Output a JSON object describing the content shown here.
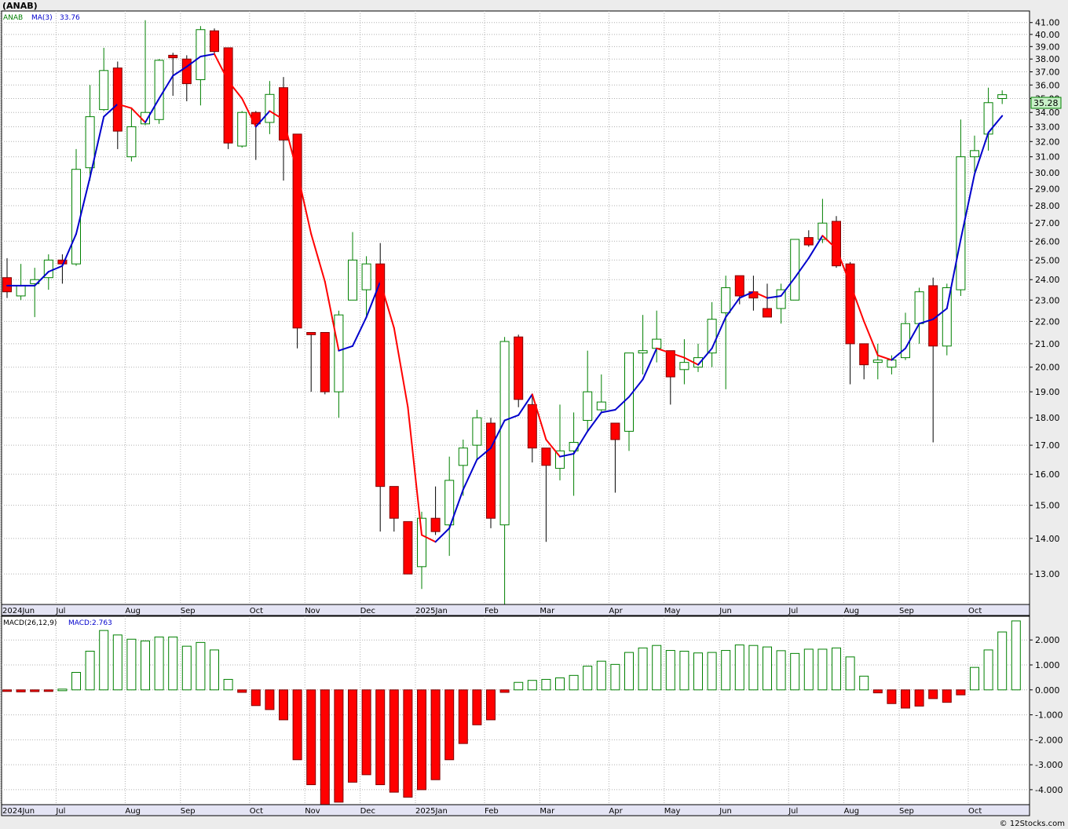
{
  "symbol_title": "(ANAB)",
  "legend": {
    "ticker": "ANAB",
    "ma_label": "MA(3)",
    "ma_value": "33.76"
  },
  "macd_legend": {
    "label": "MACD(26,12,9)",
    "value_label": "MACD:2.763"
  },
  "last_price_label": "35.28",
  "watermark": "© 12Stocks.com",
  "colors": {
    "up": "#008000",
    "down": "#ff0000",
    "ma_up": "#0000cc",
    "ma_down": "#ff0000",
    "grid": "#b0b0b0",
    "last_bg": "#c8f0c8"
  },
  "month_labels": [
    {
      "week": 0,
      "label": "2024Jun"
    },
    {
      "week": 4,
      "label": "Jul"
    },
    {
      "week": 9,
      "label": "Aug"
    },
    {
      "week": 13,
      "label": "Sep"
    },
    {
      "week": 18,
      "label": "Oct"
    },
    {
      "week": 22,
      "label": "Nov"
    },
    {
      "week": 26,
      "label": "Dec"
    },
    {
      "week": 30,
      "label": "2025Jan"
    },
    {
      "week": 35,
      "label": "Feb"
    },
    {
      "week": 39,
      "label": "Mar"
    },
    {
      "week": 44,
      "label": "Apr"
    },
    {
      "week": 48,
      "label": "May"
    },
    {
      "week": 52,
      "label": "Jun"
    },
    {
      "week": 57,
      "label": "Jul"
    },
    {
      "week": 61,
      "label": "Aug"
    },
    {
      "week": 65,
      "label": "Sep"
    },
    {
      "week": 70,
      "label": "Oct"
    }
  ],
  "chart_data": [
    {
      "type": "candlestick",
      "title": "(ANAB)",
      "ylabel": "",
      "yscale": "log",
      "ylim": [
        12.2,
        42.0
      ],
      "price_ticks": [
        "13.00",
        "14.00",
        "15.00",
        "16.00",
        "17.00",
        "18.00",
        "19.00",
        "20.00",
        "21.00",
        "22.00",
        "23.00",
        "24.00",
        "25.00",
        "26.00",
        "27.00",
        "28.00",
        "29.00",
        "30.00",
        "31.00",
        "32.00",
        "33.00",
        "34.00",
        "35.00",
        "36.00",
        "37.00",
        "38.00",
        "39.00",
        "40.00",
        "41.00"
      ],
      "grid": true,
      "candles": [
        {
          "o": 24.1,
          "h": 25.1,
          "l": 23.1,
          "c": 23.4
        },
        {
          "o": 23.2,
          "h": 24.8,
          "l": 23.0,
          "c": 23.7
        },
        {
          "o": 23.8,
          "h": 24.6,
          "l": 22.2,
          "c": 24.0
        },
        {
          "o": 24.1,
          "h": 25.3,
          "l": 23.5,
          "c": 25.0
        },
        {
          "o": 25.0,
          "h": 25.3,
          "l": 23.8,
          "c": 24.8
        },
        {
          "o": 24.8,
          "h": 31.5,
          "l": 24.7,
          "c": 30.2
        },
        {
          "o": 30.3,
          "h": 36.0,
          "l": 29.5,
          "c": 33.7
        },
        {
          "o": 34.2,
          "h": 38.9,
          "l": 34.1,
          "c": 37.1
        },
        {
          "o": 37.3,
          "h": 37.8,
          "l": 31.5,
          "c": 32.7
        },
        {
          "o": 31.0,
          "h": 34.3,
          "l": 30.7,
          "c": 33.0
        },
        {
          "o": 33.2,
          "h": 41.2,
          "l": 33.1,
          "c": 34.0
        },
        {
          "o": 33.5,
          "h": 38.0,
          "l": 33.2,
          "c": 37.9
        },
        {
          "o": 38.3,
          "h": 38.5,
          "l": 35.2,
          "c": 38.1
        },
        {
          "o": 38.0,
          "h": 38.3,
          "l": 34.8,
          "c": 36.1
        },
        {
          "o": 36.4,
          "h": 40.7,
          "l": 34.5,
          "c": 40.4
        },
        {
          "o": 40.3,
          "h": 40.5,
          "l": 38.4,
          "c": 38.6
        },
        {
          "o": 38.9,
          "h": 38.9,
          "l": 31.5,
          "c": 31.9
        },
        {
          "o": 31.7,
          "h": 34.1,
          "l": 31.6,
          "c": 34.0
        },
        {
          "o": 34.0,
          "h": 34.1,
          "l": 30.8,
          "c": 33.2
        },
        {
          "o": 33.3,
          "h": 36.3,
          "l": 32.5,
          "c": 35.3
        },
        {
          "o": 35.8,
          "h": 36.6,
          "l": 29.5,
          "c": 32.1
        },
        {
          "o": 32.5,
          "h": 32.5,
          "l": 20.8,
          "c": 21.7
        },
        {
          "o": 21.5,
          "h": 21.5,
          "l": 19.0,
          "c": 21.4
        },
        {
          "o": 21.5,
          "h": 21.5,
          "l": 18.9,
          "c": 19.0
        },
        {
          "o": 19.0,
          "h": 22.5,
          "l": 18.0,
          "c": 22.3
        },
        {
          "o": 23.0,
          "h": 26.5,
          "l": 23.0,
          "c": 25.0
        },
        {
          "o": 23.5,
          "h": 25.2,
          "l": 22.2,
          "c": 24.8
        },
        {
          "o": 24.8,
          "h": 25.9,
          "l": 14.2,
          "c": 15.6
        },
        {
          "o": 15.6,
          "h": 15.6,
          "l": 14.2,
          "c": 14.6
        },
        {
          "o": 14.5,
          "h": 14.5,
          "l": 13.0,
          "c": 13.0
        },
        {
          "o": 13.2,
          "h": 14.8,
          "l": 12.6,
          "c": 14.6
        },
        {
          "o": 14.6,
          "h": 15.6,
          "l": 14.1,
          "c": 14.2
        },
        {
          "o": 14.4,
          "h": 16.6,
          "l": 13.5,
          "c": 15.8
        },
        {
          "o": 16.3,
          "h": 17.2,
          "l": 15.3,
          "c": 16.9
        },
        {
          "o": 17.0,
          "h": 18.3,
          "l": 16.5,
          "c": 18.0
        },
        {
          "o": 17.8,
          "h": 18.0,
          "l": 14.3,
          "c": 14.6
        },
        {
          "o": 14.4,
          "h": 21.3,
          "l": 12.2,
          "c": 21.1
        },
        {
          "o": 21.3,
          "h": 21.4,
          "l": 18.4,
          "c": 18.7
        },
        {
          "o": 18.5,
          "h": 18.9,
          "l": 16.4,
          "c": 16.9
        },
        {
          "o": 16.9,
          "h": 16.9,
          "l": 13.9,
          "c": 16.3
        },
        {
          "o": 16.2,
          "h": 18.5,
          "l": 15.8,
          "c": 16.8
        },
        {
          "o": 16.8,
          "h": 18.2,
          "l": 15.3,
          "c": 17.1
        },
        {
          "o": 17.9,
          "h": 20.7,
          "l": 17.5,
          "c": 19.0
        },
        {
          "o": 18.3,
          "h": 19.7,
          "l": 18.2,
          "c": 18.6
        },
        {
          "o": 17.8,
          "h": 17.8,
          "l": 15.4,
          "c": 17.2
        },
        {
          "o": 17.5,
          "h": 20.6,
          "l": 16.8,
          "c": 20.6
        },
        {
          "o": 20.6,
          "h": 22.3,
          "l": 19.7,
          "c": 20.7
        },
        {
          "o": 20.8,
          "h": 22.5,
          "l": 20.2,
          "c": 21.2
        },
        {
          "o": 20.7,
          "h": 20.7,
          "l": 18.5,
          "c": 19.6
        },
        {
          "o": 19.9,
          "h": 21.2,
          "l": 19.3,
          "c": 20.2
        },
        {
          "o": 20.0,
          "h": 21.0,
          "l": 19.8,
          "c": 20.4
        },
        {
          "o": 20.6,
          "h": 22.9,
          "l": 20.0,
          "c": 22.1
        },
        {
          "o": 22.4,
          "h": 24.2,
          "l": 19.1,
          "c": 23.6
        },
        {
          "o": 24.2,
          "h": 24.2,
          "l": 22.8,
          "c": 23.2
        },
        {
          "o": 23.4,
          "h": 24.2,
          "l": 22.5,
          "c": 23.1
        },
        {
          "o": 22.6,
          "h": 23.8,
          "l": 22.3,
          "c": 22.2
        },
        {
          "o": 22.6,
          "h": 23.8,
          "l": 21.9,
          "c": 23.5
        },
        {
          "o": 23.0,
          "h": 26.0,
          "l": 23.0,
          "c": 26.1
        },
        {
          "o": 26.2,
          "h": 26.6,
          "l": 25.7,
          "c": 25.8
        },
        {
          "o": 26.1,
          "h": 28.4,
          "l": 25.9,
          "c": 27.0
        },
        {
          "o": 27.1,
          "h": 27.4,
          "l": 24.6,
          "c": 24.7
        },
        {
          "o": 24.8,
          "h": 24.9,
          "l": 19.3,
          "c": 21.0
        },
        {
          "o": 21.0,
          "h": 21.0,
          "l": 19.5,
          "c": 20.1
        },
        {
          "o": 20.2,
          "h": 21.0,
          "l": 19.5,
          "c": 20.3
        },
        {
          "o": 20.0,
          "h": 20.5,
          "l": 19.7,
          "c": 20.3
        },
        {
          "o": 20.4,
          "h": 22.4,
          "l": 20.3,
          "c": 21.9
        },
        {
          "o": 21.9,
          "h": 23.6,
          "l": 21.0,
          "c": 23.4
        },
        {
          "o": 23.7,
          "h": 24.1,
          "l": 17.1,
          "c": 20.9
        },
        {
          "o": 20.9,
          "h": 23.8,
          "l": 20.5,
          "c": 23.6
        },
        {
          "o": 23.5,
          "h": 33.5,
          "l": 23.2,
          "c": 31.0
        },
        {
          "o": 31.0,
          "h": 32.4,
          "l": 29.8,
          "c": 31.4
        },
        {
          "o": 32.5,
          "h": 35.8,
          "l": 31.4,
          "c": 34.7
        },
        {
          "o": 35.0,
          "h": 35.6,
          "l": 34.6,
          "c": 35.28
        }
      ],
      "ma3": [
        23.7,
        23.7,
        23.7,
        24.4,
        24.7,
        26.4,
        29.7,
        33.7,
        34.6,
        34.3,
        33.3,
        35.0,
        36.7,
        37.4,
        38.2,
        38.4,
        36.3,
        35.0,
        33.0,
        34.1,
        33.5,
        30.0,
        26.4,
        23.9,
        20.7,
        20.9,
        22.2,
        23.9,
        21.7,
        18.4,
        14.1,
        13.9,
        14.3,
        15.5,
        16.5,
        16.9,
        17.9,
        18.1,
        18.9,
        17.2,
        16.6,
        16.7,
        17.5,
        18.2,
        18.3,
        18.8,
        19.5,
        20.8,
        20.6,
        20.4,
        20.1,
        20.8,
        22.2,
        23.1,
        23.4,
        23.1,
        23.2,
        24.1,
        25.1,
        26.3,
        25.6,
        23.8,
        22.0,
        20.5,
        20.3,
        20.8,
        21.9,
        22.1,
        22.6,
        26.1,
        29.9,
        32.6,
        33.76
      ],
      "ma_color_by_direction": true
    },
    {
      "type": "bar",
      "title": "MACD(26,12,9)",
      "ylim": [
        -4.6,
        2.95
      ],
      "y_ticks": [
        "2.000",
        "1.000",
        "0.000",
        "-1.000",
        "-2.000",
        "-3.000",
        "-4.000"
      ],
      "grid": true,
      "values": [
        -0.05,
        -0.08,
        -0.07,
        -0.01,
        0.03,
        0.7,
        1.55,
        2.38,
        2.2,
        2.03,
        1.96,
        2.12,
        2.12,
        1.75,
        1.9,
        1.6,
        0.42,
        -0.1,
        -0.63,
        -0.79,
        -1.2,
        -2.8,
        -3.8,
        -4.6,
        -4.5,
        -3.7,
        -3.4,
        -3.8,
        -4.1,
        -4.3,
        -4.0,
        -3.6,
        -2.8,
        -2.15,
        -1.4,
        -1.2,
        -0.1,
        0.3,
        0.38,
        0.42,
        0.48,
        0.58,
        0.95,
        1.15,
        1.02,
        1.5,
        1.68,
        1.78,
        1.58,
        1.55,
        1.48,
        1.5,
        1.58,
        1.8,
        1.78,
        1.72,
        1.57,
        1.46,
        1.63,
        1.63,
        1.68,
        1.32,
        0.55,
        -0.12,
        -0.55,
        -0.73,
        -0.65,
        -0.35,
        -0.5,
        -0.2,
        0.9,
        1.6,
        2.32,
        2.763
      ]
    }
  ]
}
